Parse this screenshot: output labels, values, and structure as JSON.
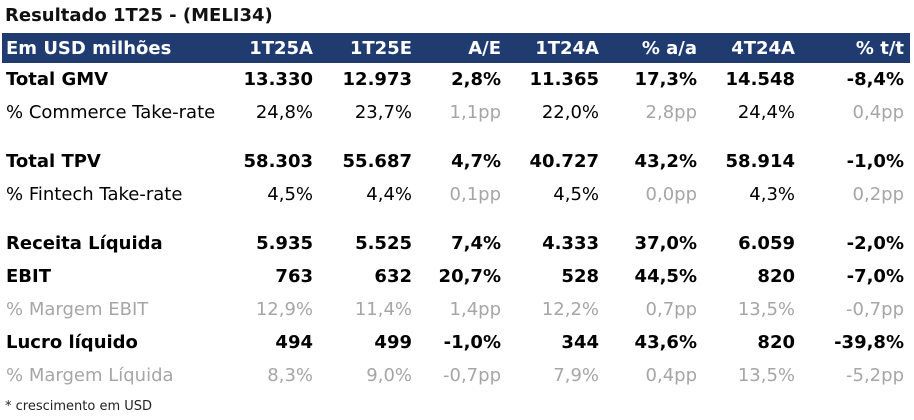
{
  "title": "Resultado 1T25 - (MELI34)",
  "header": {
    "label": "Em USD milhões",
    "columns": [
      "1T25A",
      "1T25E",
      "A/E",
      "1T24A",
      "% a/a",
      "4T24A",
      "% t/t"
    ]
  },
  "rows": [
    {
      "label": "Total GMV",
      "values": [
        "13.330",
        "12.973",
        "2,8%",
        "11.365",
        "17,3%",
        "14.548",
        "-8,4%"
      ]
    },
    {
      "label": "% Commerce Take-rate",
      "values": [
        "24,8%",
        "23,7%",
        "1,1pp",
        "22,0%",
        "2,8pp",
        "24,4%",
        "0,4pp"
      ]
    },
    {
      "label": "Total TPV",
      "values": [
        "58.303",
        "55.687",
        "4,7%",
        "40.727",
        "43,2%",
        "58.914",
        "-1,0%"
      ]
    },
    {
      "label": "% Fintech Take-rate",
      "values": [
        "4,5%",
        "4,4%",
        "0,1pp",
        "4,5%",
        "0,0pp",
        "4,3%",
        "0,2pp"
      ]
    },
    {
      "label": "Receita Líquida",
      "values": [
        "5.935",
        "5.525",
        "7,4%",
        "4.333",
        "37,0%",
        "6.059",
        "-2,0%"
      ]
    },
    {
      "label": "EBIT",
      "values": [
        "763",
        "632",
        "20,7%",
        "528",
        "44,5%",
        "820",
        "-7,0%"
      ]
    },
    {
      "label": " % Margem EBIT",
      "values": [
        "12,9%",
        "11,4%",
        "1,4pp",
        "12,2%",
        "0,7pp",
        "13,5%",
        "-0,7pp"
      ]
    },
    {
      "label": "Lucro líquido",
      "values": [
        "494",
        "499",
        "-1,0%",
        "344",
        "43,6%",
        "820",
        "-39,8%"
      ]
    },
    {
      "label": " % Margem Líquida",
      "values": [
        "8,3%",
        "9,0%",
        "-0,7pp",
        "7,9%",
        "0,4pp",
        "13,5%",
        "-5,2pp"
      ]
    }
  ],
  "footnote": "* crescimento em USD",
  "colors": {
    "header_bg": "#1f3b70",
    "header_text": "#ffffff",
    "muted_text": "#a6a6a6"
  }
}
